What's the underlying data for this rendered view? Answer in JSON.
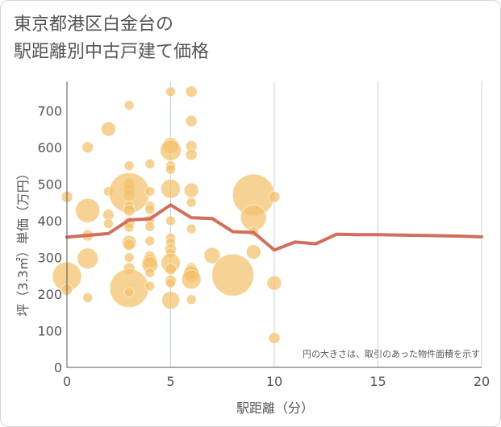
{
  "chart_data": {
    "type": "scatter",
    "title_lines": [
      "東京都港区白金台の",
      "駅距離別中古戸建て価格"
    ],
    "xlabel": "駅距離（分）",
    "ylabel": "坪（3.3㎡）単価（万円）",
    "xlim": [
      0,
      20
    ],
    "ylim": [
      0,
      780
    ],
    "xticks": [
      0,
      5,
      10,
      15,
      20
    ],
    "yticks": [
      0,
      100,
      200,
      300,
      400,
      500,
      600,
      700
    ],
    "note": "円の大きさは、取引のあった物件面積を示す",
    "colors": {
      "bubble": "#f2c06b",
      "line": "#d26e5c",
      "grid": "#c5d0dd",
      "axis": "#555555"
    },
    "bubbles": [
      {
        "x": 0,
        "y": 465,
        "s": 7
      },
      {
        "x": 0,
        "y": 248,
        "s": 18
      },
      {
        "x": 0,
        "y": 212,
        "s": 7
      },
      {
        "x": 1,
        "y": 600,
        "s": 7
      },
      {
        "x": 1,
        "y": 428,
        "s": 15
      },
      {
        "x": 1,
        "y": 360,
        "s": 7
      },
      {
        "x": 1,
        "y": 297,
        "s": 13
      },
      {
        "x": 1,
        "y": 190,
        "s": 6
      },
      {
        "x": 2,
        "y": 650,
        "s": 9
      },
      {
        "x": 2,
        "y": 480,
        "s": 6
      },
      {
        "x": 2,
        "y": 416,
        "s": 7
      },
      {
        "x": 2,
        "y": 392,
        "s": 6
      },
      {
        "x": 3,
        "y": 715,
        "s": 6
      },
      {
        "x": 3,
        "y": 550,
        "s": 6
      },
      {
        "x": 3,
        "y": 500,
        "s": 7
      },
      {
        "x": 3,
        "y": 486,
        "s": 7
      },
      {
        "x": 3,
        "y": 470,
        "s": 7
      },
      {
        "x": 3,
        "y": 476,
        "s": 25
      },
      {
        "x": 3,
        "y": 440,
        "s": 6
      },
      {
        "x": 3,
        "y": 428,
        "s": 7
      },
      {
        "x": 3,
        "y": 395,
        "s": 7
      },
      {
        "x": 3,
        "y": 382,
        "s": 6
      },
      {
        "x": 3,
        "y": 340,
        "s": 9
      },
      {
        "x": 3,
        "y": 335,
        "s": 7
      },
      {
        "x": 3,
        "y": 300,
        "s": 6
      },
      {
        "x": 3,
        "y": 270,
        "s": 7
      },
      {
        "x": 3,
        "y": 216,
        "s": 24
      },
      {
        "x": 3,
        "y": 205,
        "s": 6
      },
      {
        "x": 4,
        "y": 555,
        "s": 6
      },
      {
        "x": 4,
        "y": 480,
        "s": 6
      },
      {
        "x": 4,
        "y": 440,
        "s": 6
      },
      {
        "x": 4,
        "y": 430,
        "s": 6
      },
      {
        "x": 4,
        "y": 402,
        "s": 6
      },
      {
        "x": 4,
        "y": 384,
        "s": 6
      },
      {
        "x": 4,
        "y": 345,
        "s": 6
      },
      {
        "x": 4,
        "y": 302,
        "s": 7
      },
      {
        "x": 4,
        "y": 290,
        "s": 9
      },
      {
        "x": 4,
        "y": 280,
        "s": 10
      },
      {
        "x": 4,
        "y": 258,
        "s": 6
      },
      {
        "x": 4,
        "y": 222,
        "s": 6
      },
      {
        "x": 5,
        "y": 752,
        "s": 6
      },
      {
        "x": 5,
        "y": 605,
        "s": 10
      },
      {
        "x": 5,
        "y": 592,
        "s": 13
      },
      {
        "x": 5,
        "y": 550,
        "s": 6
      },
      {
        "x": 5,
        "y": 540,
        "s": 6
      },
      {
        "x": 5,
        "y": 487,
        "s": 12
      },
      {
        "x": 5,
        "y": 400,
        "s": 6
      },
      {
        "x": 5,
        "y": 353,
        "s": 6
      },
      {
        "x": 5,
        "y": 340,
        "s": 6
      },
      {
        "x": 5,
        "y": 322,
        "s": 7
      },
      {
        "x": 5,
        "y": 312,
        "s": 6
      },
      {
        "x": 5,
        "y": 285,
        "s": 12
      },
      {
        "x": 5,
        "y": 268,
        "s": 7
      },
      {
        "x": 5,
        "y": 236,
        "s": 7
      },
      {
        "x": 5,
        "y": 230,
        "s": 6
      },
      {
        "x": 5,
        "y": 183,
        "s": 11
      },
      {
        "x": 6,
        "y": 752,
        "s": 7
      },
      {
        "x": 6,
        "y": 672,
        "s": 7
      },
      {
        "x": 6,
        "y": 603,
        "s": 7
      },
      {
        "x": 6,
        "y": 580,
        "s": 7
      },
      {
        "x": 6,
        "y": 483,
        "s": 9
      },
      {
        "x": 6,
        "y": 450,
        "s": 6
      },
      {
        "x": 6,
        "y": 378,
        "s": 6
      },
      {
        "x": 6,
        "y": 270,
        "s": 7
      },
      {
        "x": 6,
        "y": 260,
        "s": 9
      },
      {
        "x": 6,
        "y": 254,
        "s": 10
      },
      {
        "x": 6,
        "y": 240,
        "s": 12
      },
      {
        "x": 6,
        "y": 185,
        "s": 6
      },
      {
        "x": 7,
        "y": 305,
        "s": 10
      },
      {
        "x": 8,
        "y": 252,
        "s": 26
      },
      {
        "x": 9,
        "y": 470,
        "s": 26
      },
      {
        "x": 9,
        "y": 408,
        "s": 16
      },
      {
        "x": 9,
        "y": 370,
        "s": 6
      },
      {
        "x": 9,
        "y": 315,
        "s": 9
      },
      {
        "x": 10,
        "y": 465,
        "s": 7
      },
      {
        "x": 10,
        "y": 230,
        "s": 9
      },
      {
        "x": 10,
        "y": 80,
        "s": 7
      }
    ],
    "line": {
      "x": [
        0,
        2,
        3,
        4,
        5,
        6,
        7,
        8,
        9,
        10,
        11,
        12,
        13,
        14,
        15,
        16,
        17,
        18,
        19,
        20
      ],
      "y": [
        355,
        365,
        402,
        405,
        443,
        408,
        406,
        370,
        368,
        320,
        342,
        337,
        363,
        362,
        362,
        361,
        360,
        359,
        358,
        356
      ]
    }
  }
}
